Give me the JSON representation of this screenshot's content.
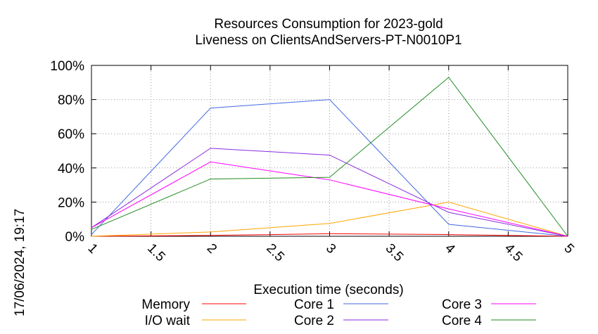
{
  "chart_data": {
    "type": "line",
    "title_line1": "Resources Consumption for 2023-gold",
    "title_line2": "Liveness on ClientsAndServers-PT-N0010P1",
    "timestamp": "17/06/2024, 19:17",
    "xlabel": "Execution time (seconds)",
    "ylabel": "",
    "xlim": [
      1,
      5
    ],
    "ylim": [
      0,
      100
    ],
    "x_ticks": [
      "1",
      "1.5",
      "2",
      "2.5",
      "3",
      "3.5",
      "4",
      "4.5",
      "5"
    ],
    "y_ticks": [
      "0%",
      "20%",
      "40%",
      "60%",
      "80%",
      "100%"
    ],
    "grid": true,
    "legend_position": "bottom",
    "x": [
      1,
      2,
      3,
      4,
      5
    ],
    "series": [
      {
        "name": "Memory",
        "color": "#ff0000",
        "values": [
          0,
          0.5,
          1.5,
          1,
          0
        ]
      },
      {
        "name": "I/O wait",
        "color": "#ffa500",
        "values": [
          0,
          2.5,
          7.5,
          20,
          0
        ]
      },
      {
        "name": "Core 1",
        "color": "#4169e1",
        "values": [
          1,
          75,
          80,
          7,
          0
        ]
      },
      {
        "name": "Core 2",
        "color": "#8a2be2",
        "values": [
          5,
          51.5,
          47.5,
          14,
          0
        ]
      },
      {
        "name": "Core 3",
        "color": "#ff00ff",
        "values": [
          5,
          43.5,
          33,
          16,
          0
        ]
      },
      {
        "name": "Core 4",
        "color": "#228b22",
        "values": [
          4,
          33.5,
          34.5,
          93,
          0
        ]
      }
    ]
  }
}
